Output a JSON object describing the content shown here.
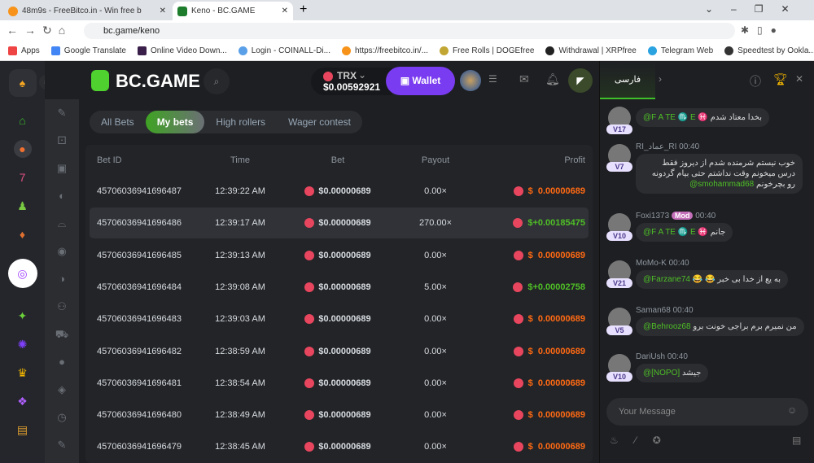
{
  "browser": {
    "tabs": [
      {
        "title": "48m9s - FreeBitco.in - Win free b"
      },
      {
        "title": "Keno - BC.GAME"
      }
    ],
    "url": "bc.game/keno",
    "bookmarks": [
      "Apps",
      "Google Translate",
      "Online Video Down...",
      "Login - COINALL-Di...",
      "https://freebitco.in/...",
      "Free Rolls | DOGEfree",
      "Withdrawal | XRPfree",
      "Telegram Web",
      "Speedtest by Ookla..."
    ]
  },
  "header": {
    "logo": "BC.GAME",
    "currency": "TRX",
    "balance": "$0.00592921",
    "wallet_label": "Wallet"
  },
  "tabs": [
    "All Bets",
    "My bets",
    "High rollers",
    "Wager contest"
  ],
  "table": {
    "columns": [
      "Bet ID",
      "Time",
      "Bet",
      "Payout",
      "Profit"
    ],
    "rows": [
      {
        "id": "45706036941696487",
        "time": "12:39:22 AM",
        "bet": "$0.00000689",
        "payout": "0.00×",
        "profit": "$  0.00000689",
        "win": false
      },
      {
        "id": "45706036941696486",
        "time": "12:39:17 AM",
        "bet": "$0.00000689",
        "payout": "270.00×",
        "profit": "$+0.00185475",
        "win": true
      },
      {
        "id": "45706036941696485",
        "time": "12:39:13 AM",
        "bet": "$0.00000689",
        "payout": "0.00×",
        "profit": "$  0.00000689",
        "win": false
      },
      {
        "id": "45706036941696484",
        "time": "12:39:08 AM",
        "bet": "$0.00000689",
        "payout": "5.00×",
        "profit": "$+0.00002758",
        "win": true
      },
      {
        "id": "45706036941696483",
        "time": "12:39:03 AM",
        "bet": "$0.00000689",
        "payout": "0.00×",
        "profit": "$  0.00000689",
        "win": false
      },
      {
        "id": "45706036941696482",
        "time": "12:38:59 AM",
        "bet": "$0.00000689",
        "payout": "0.00×",
        "profit": "$  0.00000689",
        "win": false
      },
      {
        "id": "45706036941696481",
        "time": "12:38:54 AM",
        "bet": "$0.00000689",
        "payout": "0.00×",
        "profit": "$  0.00000689",
        "win": false
      },
      {
        "id": "45706036941696480",
        "time": "12:38:49 AM",
        "bet": "$0.00000689",
        "payout": "0.00×",
        "profit": "$  0.00000689",
        "win": false
      },
      {
        "id": "45706036941696479",
        "time": "12:38:45 AM",
        "bet": "$0.00000689",
        "payout": "0.00×",
        "profit": "$  0.00000689",
        "win": false
      }
    ]
  },
  "chat": {
    "language": "فارسی",
    "input_placeholder": "Your Message",
    "messages": [
      {
        "level": "V17",
        "name": "",
        "time": "",
        "mention": "@F A TE ♏ E ♓",
        "text": "بخدا معتاد شدم"
      },
      {
        "level": "V7",
        "name": "RI_عماد_RI",
        "time": "00:40",
        "mention": "@smohammad68",
        "text": "خوب نیستم شرمنده شدم از دیروز فقط درس میخونم وقت نداشتم حتی بیام گردونه رو بچرخونم"
      },
      {
        "level": "V10",
        "name": "Foxi1373",
        "badge": "Mod",
        "time": "00:40",
        "mention": "@F A TE ♏ E ♓",
        "text": "جانم"
      },
      {
        "level": "V21",
        "name": "MoMo-K",
        "time": "00:40",
        "mention": "@Farzane74",
        "text": "به یع از خدا بی خبر 😂 😂"
      },
      {
        "level": "V5",
        "name": "Saman68",
        "time": "00:40",
        "mention": "@Behrooz68",
        "text": "من نمیرم برم براجی خونت برو"
      },
      {
        "level": "V10",
        "name": "DariUsh",
        "time": "00:40",
        "mention": "@[NOPO]",
        "text": "جیشد"
      }
    ]
  },
  "colors": {
    "accent": "#3fa323",
    "wallet": "#7a3cf0",
    "win": "#4fbf26",
    "loss": "#ff6a13"
  }
}
